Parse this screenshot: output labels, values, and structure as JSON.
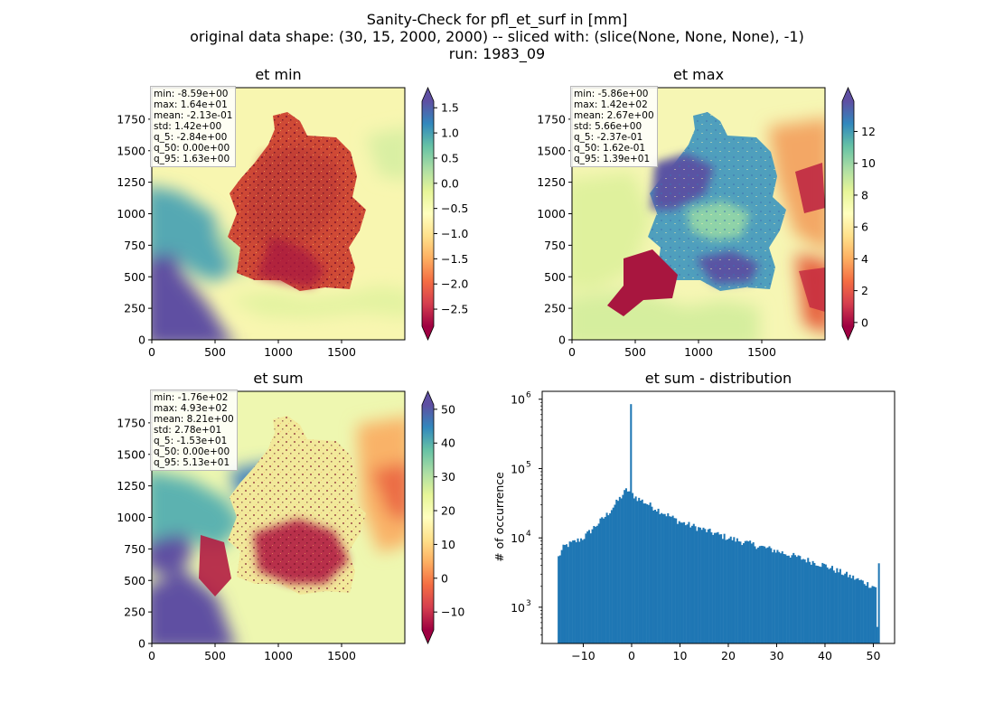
{
  "figure": {
    "title_lines": [
      "Sanity-Check for pfl_et_surf in [mm]",
      "original data shape: (30, 15, 2000, 2000) -- sliced with: (slice(None, None, None), -1)",
      "run: 1983_09"
    ]
  },
  "chart_data": [
    {
      "type": "heatmap",
      "title": "et min",
      "xlim": [
        0,
        2000
      ],
      "ylim": [
        0,
        2000
      ],
      "xticks": [
        0,
        500,
        1000,
        1500
      ],
      "yticks": [
        0,
        250,
        500,
        750,
        1000,
        1250,
        1500,
        1750
      ],
      "colormap": "Spectral",
      "colorbar": {
        "range": [
          -2.84,
          1.63
        ],
        "extend": "both",
        "ticks": [
          "1.5",
          "1.0",
          "0.5",
          "0.0",
          "−0.5",
          "−1.0",
          "−1.5",
          "−2.0",
          "−2.5"
        ],
        "tick_values": [
          1.5,
          1.0,
          0.5,
          0.0,
          -0.5,
          -1.0,
          -1.5,
          -2.0,
          -2.5
        ]
      },
      "stats": [
        "min: -8.59e+00",
        "max: 1.64e+01",
        "mean: -2.13e-01",
        "std: 1.42e+00",
        "q_5: -2.84e+00",
        "q_50: 0.00e+00",
        "q_95: 1.63e+00"
      ]
    },
    {
      "type": "heatmap",
      "title": "et max",
      "xlim": [
        0,
        2000
      ],
      "ylim": [
        0,
        2000
      ],
      "xticks": [
        0,
        500,
        1000,
        1500
      ],
      "yticks": [
        0,
        250,
        500,
        750,
        1000,
        1250,
        1500,
        1750
      ],
      "colormap": "Spectral",
      "colorbar": {
        "range": [
          -0.237,
          13.9
        ],
        "extend": "both",
        "ticks": [
          "12",
          "10",
          "8",
          "6",
          "4",
          "2",
          "0"
        ],
        "tick_values": [
          12,
          10,
          8,
          6,
          4,
          2,
          0
        ]
      },
      "stats": [
        "min: -5.86e+00",
        "max: 1.42e+02",
        "mean: 2.67e+00",
        "std: 5.66e+00",
        "q_5: -2.37e-01",
        "q_50: 1.62e-01",
        "q_95: 1.39e+01"
      ]
    },
    {
      "type": "heatmap",
      "title": "et sum",
      "xlim": [
        0,
        2000
      ],
      "ylim": [
        0,
        2000
      ],
      "xticks": [
        0,
        500,
        1000,
        1500
      ],
      "yticks": [
        0,
        250,
        500,
        750,
        1000,
        1250,
        1500,
        1750
      ],
      "colormap": "Spectral",
      "colorbar": {
        "range": [
          -15.3,
          51.3
        ],
        "extend": "both",
        "ticks": [
          "50",
          "40",
          "30",
          "20",
          "10",
          "0",
          "−10"
        ],
        "tick_values": [
          50,
          40,
          30,
          20,
          10,
          0,
          -10
        ]
      },
      "stats": [
        "min: -1.76e+02",
        "max: 4.93e+02",
        "mean: 8.21e+00",
        "std: 2.78e+01",
        "q_5: -1.53e+01",
        "q_50: 0.00e+00",
        "q_95: 5.13e+01"
      ]
    },
    {
      "type": "bar",
      "title": "et sum - distribution",
      "ylabel": "# of occurrence",
      "yscale": "log",
      "xlim": [
        -18.5,
        54.4
      ],
      "ylim": [
        300,
        1300000
      ],
      "xticks": [
        "−10",
        "0",
        "10",
        "20",
        "30",
        "40",
        "50"
      ],
      "xtick_values": [
        -10,
        0,
        10,
        20,
        30,
        40,
        50
      ],
      "ytick_values": [
        1000,
        10000,
        100000,
        1000000
      ],
      "ytick_labels": [
        [
          "10",
          "3"
        ],
        [
          "10",
          "4"
        ],
        [
          "10",
          "5"
        ],
        [
          "10",
          "6"
        ]
      ],
      "bar_color": "#1f77b4",
      "bin_range": [
        -15.3,
        51.3
      ],
      "bin_count": 200,
      "distribution_estimate": {
        "level_at_lower_edge": 5000,
        "level_at_-14": 7500,
        "level_at_-10": 10000,
        "level_at_-5": 22000,
        "level_at_-1": 50000,
        "peak_at_0": 850000,
        "level_at_1": 38000,
        "level_at_10": 17000,
        "level_at_20": 10000,
        "level_at_30": 6500,
        "level_at_40": 4000,
        "level_at_50": 2000
      }
    }
  ]
}
